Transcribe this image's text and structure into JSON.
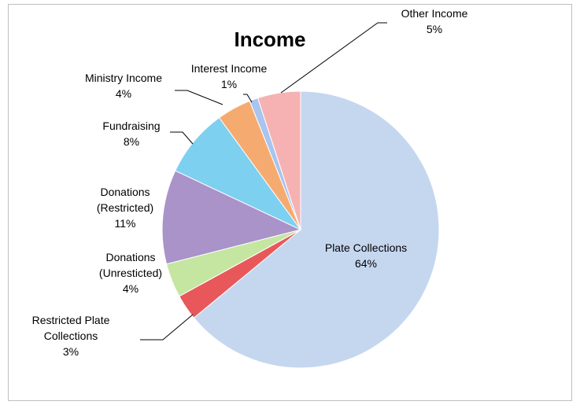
{
  "chart_data": {
    "type": "pie",
    "title": "Income",
    "slices": [
      {
        "label": "Plate Collections",
        "label_lines": [
          "Plate Collections"
        ],
        "value": 64,
        "percent_label": "64%",
        "color": "#c5d7ef"
      },
      {
        "label": "Restricted Plate Collections",
        "label_lines": [
          "Restricted Plate",
          "Collections"
        ],
        "value": 3,
        "percent_label": "3%",
        "color": "#e8585a"
      },
      {
        "label": "Donations (Unresticted)",
        "label_lines": [
          "Donations",
          "(Unresticted)"
        ],
        "value": 4,
        "percent_label": "4%",
        "color": "#c4e6a0"
      },
      {
        "label": "Donations (Restricted)",
        "label_lines": [
          "Donations",
          "(Restricted)"
        ],
        "value": 11,
        "percent_label": "11%",
        "color": "#a993c9"
      },
      {
        "label": "Fundraising",
        "label_lines": [
          "Fundraising"
        ],
        "value": 8,
        "percent_label": "8%",
        "color": "#7dd0ef"
      },
      {
        "label": "Ministry Income",
        "label_lines": [
          "Ministry Income"
        ],
        "value": 4,
        "percent_label": "4%",
        "color": "#f5ab70"
      },
      {
        "label": "Interest Income",
        "label_lines": [
          "Interest Income"
        ],
        "value": 1,
        "percent_label": "1%",
        "color": "#a8c4ef"
      },
      {
        "label": "Other Income",
        "label_lines": [
          "Other Income"
        ],
        "value": 5,
        "percent_label": "5%",
        "color": "#f6b2b2"
      }
    ],
    "start_angle_deg": 0,
    "direction": "clockwise",
    "legend": "none",
    "labels": "outside-with-leader-lines"
  }
}
